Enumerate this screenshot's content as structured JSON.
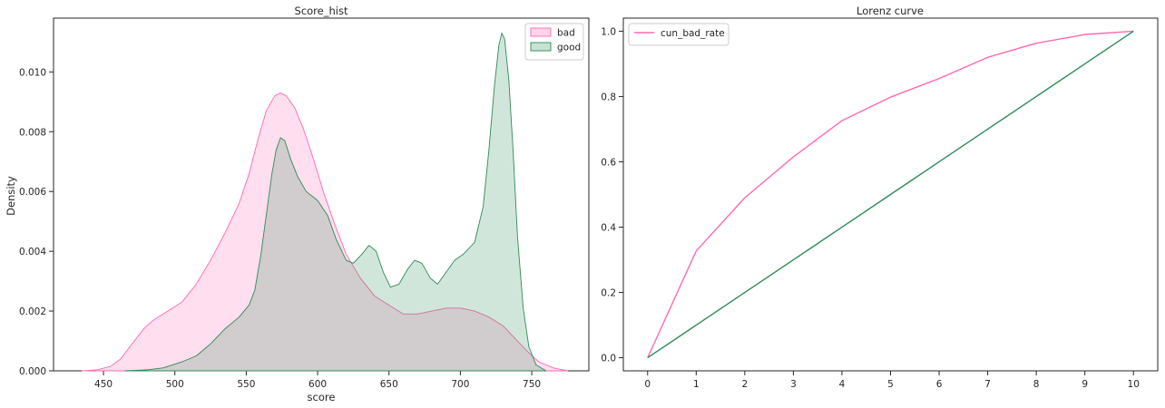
{
  "chart_data": [
    {
      "type": "area",
      "title": "Score_hist",
      "xlabel": "score",
      "ylabel": "Density",
      "xlim": [
        415,
        790
      ],
      "ylim": [
        0,
        0.0118
      ],
      "x_ticks": [
        450,
        500,
        550,
        600,
        650,
        700,
        750
      ],
      "y_ticks": [
        0.0,
        0.002,
        0.004,
        0.006,
        0.008,
        0.01
      ],
      "y_tick_labels": [
        "0.000",
        "0.002",
        "0.004",
        "0.006",
        "0.008",
        "0.010"
      ],
      "grid": false,
      "legend_position": "top-right",
      "series": [
        {
          "name": "bad",
          "color": "#ff69b4",
          "fill": "#fdd4e9",
          "points": [
            [
              435,
              0.0
            ],
            [
              445,
              3e-05
            ],
            [
              455,
              0.00015
            ],
            [
              462,
              0.0004
            ],
            [
              470,
              0.0009
            ],
            [
              478,
              0.0014
            ],
            [
              485,
              0.0017
            ],
            [
              495,
              0.002
            ],
            [
              505,
              0.0023
            ],
            [
              515,
              0.0029
            ],
            [
              525,
              0.0037
            ],
            [
              535,
              0.0046
            ],
            [
              545,
              0.0056
            ],
            [
              552,
              0.0066
            ],
            [
              558,
              0.0077
            ],
            [
              564,
              0.0087
            ],
            [
              570,
              0.0092
            ],
            [
              574,
              0.0093
            ],
            [
              578,
              0.0092
            ],
            [
              584,
              0.0088
            ],
            [
              590,
              0.0081
            ],
            [
              597,
              0.0071
            ],
            [
              604,
              0.006
            ],
            [
              612,
              0.0049
            ],
            [
              620,
              0.0039
            ],
            [
              630,
              0.0031
            ],
            [
              640,
              0.0025
            ],
            [
              650,
              0.0022
            ],
            [
              660,
              0.0019
            ],
            [
              670,
              0.0019
            ],
            [
              680,
              0.002
            ],
            [
              690,
              0.0021
            ],
            [
              700,
              0.0021
            ],
            [
              710,
              0.002
            ],
            [
              720,
              0.0018
            ],
            [
              730,
              0.0015
            ],
            [
              740,
              0.001
            ],
            [
              748,
              0.0006
            ],
            [
              755,
              0.0003
            ],
            [
              765,
              0.0001
            ],
            [
              775,
              0.0
            ]
          ]
        },
        {
          "name": "good",
          "color": "#2e8b57",
          "fill": "#c8e3d4",
          "points": [
            [
              465,
              0.0
            ],
            [
              480,
              3e-05
            ],
            [
              492,
              0.0001
            ],
            [
              505,
              0.0003
            ],
            [
              515,
              0.0005
            ],
            [
              525,
              0.0009
            ],
            [
              535,
              0.0014
            ],
            [
              545,
              0.0018
            ],
            [
              552,
              0.0022
            ],
            [
              556,
              0.0027
            ],
            [
              560,
              0.0038
            ],
            [
              564,
              0.0052
            ],
            [
              568,
              0.0066
            ],
            [
              571,
              0.0074
            ],
            [
              574,
              0.0078
            ],
            [
              577,
              0.0077
            ],
            [
              581,
              0.0071
            ],
            [
              586,
              0.0065
            ],
            [
              592,
              0.006
            ],
            [
              600,
              0.0057
            ],
            [
              607,
              0.0052
            ],
            [
              613,
              0.0044
            ],
            [
              620,
              0.0037
            ],
            [
              625,
              0.0036
            ],
            [
              631,
              0.0039
            ],
            [
              636,
              0.0042
            ],
            [
              641,
              0.004
            ],
            [
              646,
              0.0033
            ],
            [
              651,
              0.0028
            ],
            [
              657,
              0.0029
            ],
            [
              663,
              0.0034
            ],
            [
              668,
              0.0037
            ],
            [
              673,
              0.0036
            ],
            [
              679,
              0.0031
            ],
            [
              684,
              0.0029
            ],
            [
              690,
              0.0033
            ],
            [
              696,
              0.0037
            ],
            [
              702,
              0.0039
            ],
            [
              710,
              0.0043
            ],
            [
              716,
              0.0055
            ],
            [
              720,
              0.0074
            ],
            [
              724,
              0.0096
            ],
            [
              727,
              0.0109
            ],
            [
              729,
              0.0113
            ],
            [
              731,
              0.0111
            ],
            [
              734,
              0.0097
            ],
            [
              737,
              0.0073
            ],
            [
              740,
              0.0045
            ],
            [
              744,
              0.0021
            ],
            [
              748,
              0.0008
            ],
            [
              753,
              0.0002
            ],
            [
              760,
              0.0
            ]
          ]
        }
      ]
    },
    {
      "type": "line",
      "title": "Lorenz curve",
      "xlabel": "",
      "ylabel": "",
      "xlim": [
        -0.5,
        10.5
      ],
      "ylim": [
        -0.04,
        1.04
      ],
      "x": [
        0,
        1,
        2,
        3,
        4,
        5,
        6,
        7,
        8,
        9,
        10
      ],
      "x_ticks": [
        0,
        1,
        2,
        3,
        4,
        5,
        6,
        7,
        8,
        9,
        10
      ],
      "y_ticks": [
        0.0,
        0.2,
        0.4,
        0.6,
        0.8,
        1.0
      ],
      "y_tick_labels": [
        "0.0",
        "0.2",
        "0.4",
        "0.6",
        "0.8",
        "1.0"
      ],
      "grid": false,
      "legend_position": "top-left",
      "series": [
        {
          "name": "cun_bad_rate",
          "color": "#ff69b4",
          "values": [
            0.0,
            0.327,
            0.49,
            0.615,
            0.726,
            0.798,
            0.855,
            0.92,
            0.963,
            0.99,
            1.0
          ]
        },
        {
          "name": "",
          "color": "#2e8b57",
          "values": [
            0.0,
            0.1,
            0.2,
            0.3,
            0.4,
            0.5,
            0.6,
            0.7,
            0.8,
            0.9,
            1.0
          ]
        }
      ]
    }
  ]
}
